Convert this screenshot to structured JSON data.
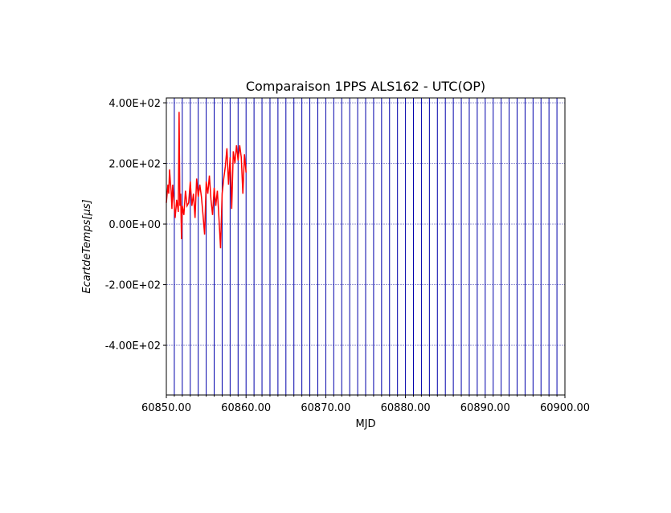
{
  "chart_data": {
    "type": "line",
    "title": "Comparaison 1PPS ALS162 - UTC(OP)",
    "x_label": "MJD",
    "y_label": "EcartdeTemps[μs]",
    "x": [
      60850.0,
      60850.2,
      60850.3,
      60850.4,
      60850.5,
      60850.6,
      60850.7,
      60850.8,
      60851.0,
      60851.1,
      60851.3,
      60851.5,
      60851.6,
      60851.7,
      60851.8,
      60851.9,
      60852.0,
      60852.2,
      60852.4,
      60852.6,
      60852.8,
      60853.0,
      60853.2,
      60853.4,
      60853.6,
      60853.8,
      60854.0,
      60854.2,
      60854.4,
      60854.6,
      60854.8,
      60855.0,
      60855.2,
      60855.4,
      60855.6,
      60855.8,
      60856.0,
      60856.2,
      60856.4,
      60856.6,
      60856.8,
      60857.0,
      60857.2,
      60857.4,
      60857.6,
      60857.8,
      60858.0,
      60858.2,
      60858.4,
      60858.6,
      60858.8,
      60859.0,
      60859.2,
      60859.4,
      60859.6,
      60859.8,
      60860.0
    ],
    "values": [
      70,
      130,
      100,
      180,
      140,
      110,
      50,
      130,
      60,
      20,
      80,
      40,
      370,
      60,
      100,
      -50,
      60,
      30,
      110,
      60,
      70,
      140,
      60,
      100,
      20,
      150,
      90,
      130,
      90,
      30,
      -35,
      140,
      100,
      160,
      80,
      30,
      120,
      60,
      110,
      20,
      -80,
      100,
      150,
      190,
      250,
      130,
      220,
      50,
      240,
      200,
      260,
      210,
      260,
      220,
      100,
      230,
      170
    ],
    "color": "#ff0000",
    "xlim": [
      60850,
      60900
    ],
    "xticks": [
      {
        "value": 60850,
        "label": "60850.00"
      },
      {
        "value": 60860,
        "label": "60860.00"
      },
      {
        "value": 60870,
        "label": "60870.00"
      },
      {
        "value": 60880,
        "label": "60880.00"
      },
      {
        "value": 60890,
        "label": "60890.00"
      },
      {
        "value": 60900,
        "label": "60900.00"
      }
    ],
    "x_minor_ticks": [
      60851,
      60852,
      60853,
      60854,
      60855,
      60856,
      60857,
      60858,
      60859,
      60861,
      60862,
      60863,
      60864,
      60865,
      60866,
      60867,
      60868,
      60869,
      60871,
      60872,
      60873,
      60874,
      60875,
      60876,
      60877,
      60878,
      60879,
      60881,
      60882,
      60883,
      60884,
      60885,
      60886,
      60887,
      60888,
      60889,
      60891,
      60892,
      60893,
      60894,
      60895,
      60896,
      60897,
      60898,
      60899
    ],
    "x_grid_color": "#0000aa",
    "ylim": [
      -564,
      416
    ],
    "yticks": [
      {
        "value": -400,
        "label": "-4.00E+02"
      },
      {
        "value": -200,
        "label": "-2.00E+02"
      },
      {
        "value": 0,
        "label": "0.00E+00"
      },
      {
        "value": 200,
        "label": "2.00E+02"
      },
      {
        "value": 400,
        "label": "4.00E+02"
      }
    ],
    "y_grid_color": "#8888cc",
    "grid": true
  }
}
